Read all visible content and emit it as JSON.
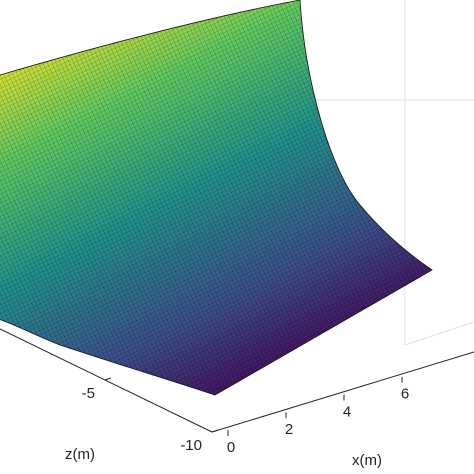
{
  "chart_data": {
    "type": "surface",
    "xlabel": "x(m)",
    "ylabel": "z(m)",
    "xlim": [
      0,
      8
    ],
    "xticks": [
      0,
      2,
      4,
      6
    ],
    "ylim": [
      -10,
      0
    ],
    "yticks": [
      -10,
      -5
    ],
    "colormap": [
      "#440154",
      "#3b528b",
      "#21918c",
      "#5ec962",
      "#fde725"
    ],
    "grid": true
  }
}
